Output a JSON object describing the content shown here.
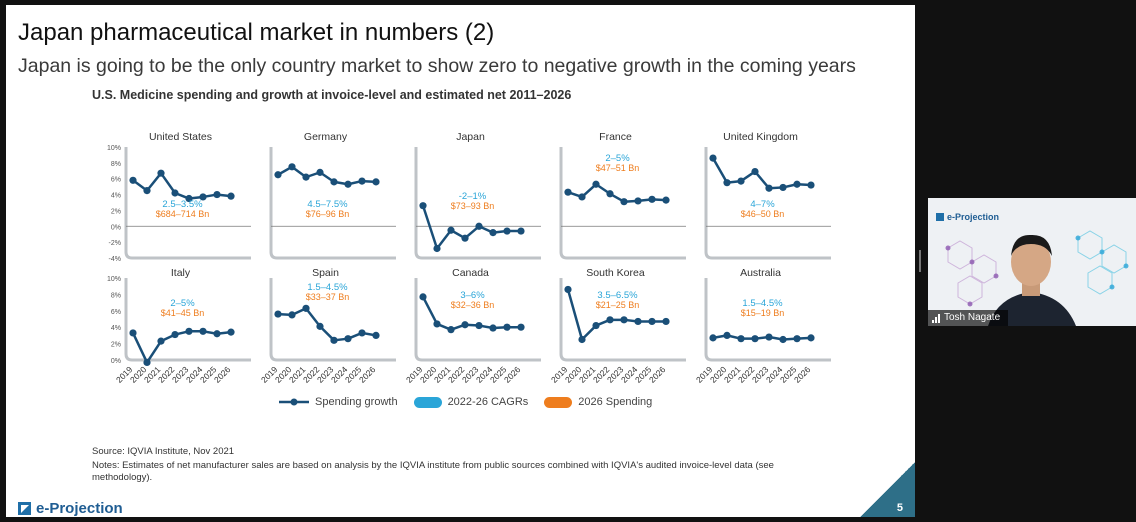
{
  "slide": {
    "title": "Japan pharmaceutical market in numbers (2)",
    "subtitle": "Japan is going to be the only country market to show zero to negative growth in the coming years",
    "chart_heading": "U.S. Medicine spending and growth at invoice-level and estimated net 2011–2026",
    "source": "Source: IQVIA Institute, Nov 2021",
    "notes": "Notes: Estimates of net manufacturer sales are based on analysis by the IQVIA institute from public sources combined with IQVIA's audited invoice-level data (see methodology).",
    "logo_text": "e-Projection",
    "page_number": "5"
  },
  "legend": {
    "spending_growth": "Spending growth",
    "cagr": "2022-26 CAGRs",
    "spending_2026": "2026 Spending"
  },
  "webcam": {
    "logo_text": "e-Projection",
    "participant_name": "Tosh Nagate"
  },
  "colors": {
    "line": "#1a4f78",
    "cagr": "#2aa5d8",
    "spending": "#ee7d1e",
    "frame": "#bfc3c7"
  },
  "chart_data": [
    {
      "type": "line",
      "title": "United States",
      "categories": [
        "2019",
        "2020",
        "2021",
        "2022",
        "2023",
        "2024",
        "2025",
        "2026"
      ],
      "values": [
        5.8,
        4.5,
        6.7,
        4.2,
        3.5,
        3.7,
        4.0,
        3.8
      ],
      "cagr": "2.5–3.5%",
      "spending": "$684–714 Bn",
      "ylim": [
        -4,
        10
      ],
      "yticks": [
        "10%",
        "8%",
        "6%",
        "4%",
        "2%",
        "0%",
        "-2%",
        "-4%"
      ]
    },
    {
      "type": "line",
      "title": "Germany",
      "categories": [
        "2019",
        "2020",
        "2021",
        "2022",
        "2023",
        "2024",
        "2025",
        "2026"
      ],
      "values": [
        6.5,
        7.5,
        6.2,
        6.8,
        5.6,
        5.3,
        5.7,
        5.6
      ],
      "cagr": "4.5–7.5%",
      "spending": "$76–96 Bn",
      "ylim": [
        -4,
        10
      ]
    },
    {
      "type": "line",
      "title": "Japan",
      "categories": [
        "2019",
        "2020",
        "2021",
        "2022",
        "2023",
        "2024",
        "2025",
        "2026"
      ],
      "values": [
        2.6,
        -2.8,
        -0.5,
        -1.5,
        0.0,
        -0.8,
        -0.6,
        -0.6
      ],
      "cagr": "-2–1%",
      "spending": "$73–93 Bn",
      "ylim": [
        -4,
        10
      ]
    },
    {
      "type": "line",
      "title": "France",
      "categories": [
        "2019",
        "2020",
        "2021",
        "2022",
        "2023",
        "2024",
        "2025",
        "2026"
      ],
      "values": [
        4.3,
        3.7,
        5.3,
        4.1,
        3.1,
        3.2,
        3.4,
        3.3
      ],
      "cagr": "2–5%",
      "spending": "$47–51 Bn",
      "ylim": [
        -4,
        10
      ]
    },
    {
      "type": "line",
      "title": "United Kingdom",
      "categories": [
        "2019",
        "2020",
        "2021",
        "2022",
        "2023",
        "2024",
        "2025",
        "2026"
      ],
      "values": [
        8.6,
        5.5,
        5.7,
        6.9,
        4.8,
        4.9,
        5.3,
        5.2
      ],
      "cagr": "4–7%",
      "spending": "$46–50 Bn",
      "ylim": [
        -4,
        10
      ]
    },
    {
      "type": "line",
      "title": "Italy",
      "categories": [
        "2019",
        "2020",
        "2021",
        "2022",
        "2023",
        "2024",
        "2025",
        "2026"
      ],
      "values": [
        3.3,
        -0.3,
        2.3,
        3.1,
        3.5,
        3.5,
        3.2,
        3.4
      ],
      "cagr": "2–5%",
      "spending": "$41–45 Bn",
      "ylim": [
        0,
        10
      ],
      "yticks": [
        "10%",
        "8%",
        "6%",
        "4%",
        "2%",
        "0%"
      ]
    },
    {
      "type": "line",
      "title": "Spain",
      "categories": [
        "2019",
        "2020",
        "2021",
        "2022",
        "2023",
        "2024",
        "2025",
        "2026"
      ],
      "values": [
        5.6,
        5.5,
        6.3,
        4.1,
        2.4,
        2.6,
        3.3,
        3.0
      ],
      "cagr": "1.5–4.5%",
      "spending": "$33–37 Bn",
      "ylim": [
        0,
        10
      ]
    },
    {
      "type": "line",
      "title": "Canada",
      "categories": [
        "2019",
        "2020",
        "2021",
        "2022",
        "2023",
        "2024",
        "2025",
        "2026"
      ],
      "values": [
        7.7,
        4.4,
        3.7,
        4.3,
        4.2,
        3.9,
        4.0,
        4.0
      ],
      "cagr": "3–6%",
      "spending": "$32–36 Bn",
      "ylim": [
        0,
        10
      ]
    },
    {
      "type": "line",
      "title": "South Korea",
      "categories": [
        "2019",
        "2020",
        "2021",
        "2022",
        "2023",
        "2024",
        "2025",
        "2026"
      ],
      "values": [
        8.6,
        2.5,
        4.2,
        4.9,
        4.9,
        4.7,
        4.7,
        4.7
      ],
      "cagr": "3.5–6.5%",
      "spending": "$21–25 Bn",
      "ylim": [
        0,
        10
      ]
    },
    {
      "type": "line",
      "title": "Australia",
      "categories": [
        "2019",
        "2020",
        "2021",
        "2022",
        "2023",
        "2024",
        "2025",
        "2026"
      ],
      "values": [
        2.7,
        3.0,
        2.6,
        2.6,
        2.8,
        2.5,
        2.6,
        2.7
      ],
      "cagr": "1.5–4.5%",
      "spending": "$15–19 Bn",
      "ylim": [
        0,
        10
      ]
    }
  ]
}
